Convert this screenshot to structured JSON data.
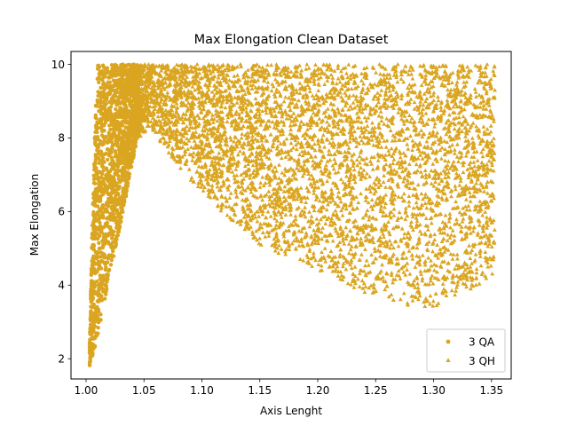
{
  "chart_data": {
    "type": "scatter",
    "title": "Max Elongation Clean Dataset",
    "xlabel": "Axis Lenght",
    "ylabel": "Max Elongation",
    "xlim": [
      0.987,
      1.367
    ],
    "ylim": [
      1.45,
      10.35
    ],
    "xticks": [
      1.0,
      1.05,
      1.1,
      1.15,
      1.2,
      1.25,
      1.3,
      1.35
    ],
    "xtick_labels": [
      "1.00",
      "1.05",
      "1.10",
      "1.15",
      "1.20",
      "1.25",
      "1.30",
      "1.35"
    ],
    "yticks": [
      2,
      4,
      6,
      8,
      10
    ],
    "ytick_labels": [
      "2",
      "4",
      "6",
      "8",
      "10"
    ],
    "grid": false,
    "legend_position": "bottom-right",
    "series": [
      {
        "name": "3 QA",
        "marker": "circle",
        "color": "#DAA520",
        "region": {
          "x_range": [
            1.003,
            1.046
          ],
          "lower_boundary": [
            [
              1.003,
              1.78
            ],
            [
              1.01,
              2.6
            ],
            [
              1.02,
              4.2
            ],
            [
              1.03,
              5.7
            ],
            [
              1.04,
              7.3
            ],
            [
              1.046,
              8.3
            ]
          ],
          "upper_boundary": [
            [
              1.003,
              2.6
            ],
            [
              1.006,
              6.5
            ],
            [
              1.008,
              8.8
            ],
            [
              1.01,
              10.0
            ],
            [
              1.046,
              10.0
            ]
          ]
        }
      },
      {
        "name": "3 QH",
        "marker": "triangle",
        "color": "#DAA520",
        "region": {
          "x_range": [
            1.04,
            1.353
          ],
          "lower_boundary": [
            [
              1.04,
              7.8
            ],
            [
              1.055,
              8.3
            ],
            [
              1.08,
              7.2
            ],
            [
              1.1,
              6.5
            ],
            [
              1.12,
              5.9
            ],
            [
              1.15,
              5.1
            ],
            [
              1.18,
              4.6
            ],
            [
              1.21,
              4.2
            ],
            [
              1.24,
              3.8
            ],
            [
              1.27,
              3.5
            ],
            [
              1.29,
              3.35
            ],
            [
              1.31,
              3.5
            ],
            [
              1.33,
              3.8
            ],
            [
              1.345,
              4.1
            ],
            [
              1.353,
              4.3
            ]
          ],
          "upper_boundary": [
            [
              1.04,
              10.0
            ],
            [
              1.353,
              10.0
            ]
          ]
        }
      }
    ]
  }
}
